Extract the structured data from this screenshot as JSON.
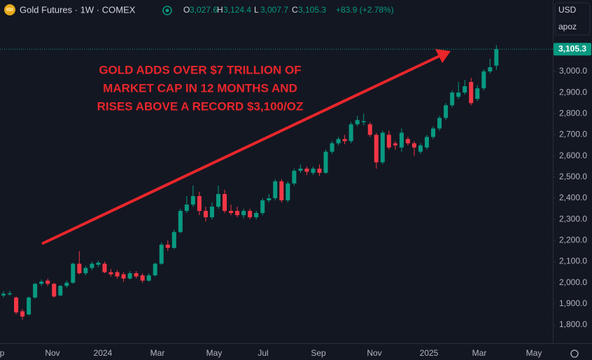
{
  "header": {
    "symbol": "Gold Futures · 1W · COMEX",
    "ohlc": [
      {
        "key": "O",
        "value": "3,027.6"
      },
      {
        "key": "H",
        "value": "3,124.4"
      },
      {
        "key": "L",
        "value": "3,007.7"
      },
      {
        "key": "C",
        "value": "3,105.3"
      }
    ],
    "change": "+83.9 (+2.78%)",
    "currency": "USD",
    "unit_menu": "apoz"
  },
  "chart_data": {
    "type": "candlestick",
    "annotation": [
      "GOLD ADDS OVER $7 TRILLION OF",
      "MARKET CAP IN 12 MONTHS AND",
      "RISES ABOVE A RECORD $3,100/OZ"
    ],
    "up_color": "#089981",
    "down_color": "#f23645",
    "annotation_color": "#e8262b",
    "xtick_labels": [
      "p",
      "Nov",
      "2024",
      "Mar",
      "May",
      "Jul",
      "Sep",
      "Nov",
      "2025",
      "Mar",
      "May"
    ],
    "open": [
      1940,
      1945,
      1930,
      1865,
      1850,
      1930,
      1995,
      2010,
      1995,
      1940,
      1985,
      2000,
      2090,
      2045,
      2070,
      2085,
      2090,
      2050,
      2050,
      2040,
      2020,
      2045,
      2035,
      2010,
      2035,
      2090,
      2180,
      2165,
      2240,
      2340,
      2370,
      2410,
      2340,
      2310,
      2360,
      2420,
      2340,
      2340,
      2320,
      2340,
      2310,
      2330,
      2390,
      2400,
      2480,
      2390,
      2470,
      2530,
      2540,
      2520,
      2540,
      2520,
      2620,
      2660,
      2680,
      2670,
      2750,
      2760,
      2750,
      2700,
      2570,
      2700,
      2660,
      2640,
      2680,
      2660,
      2620,
      2640,
      2690,
      2730,
      2780,
      2840,
      2880,
      2900,
      2950,
      2870,
      2920,
      3000,
      3027.6
    ],
    "high": [
      1960,
      1962,
      1935,
      1875,
      1935,
      2000,
      2015,
      2020,
      2000,
      1990,
      2010,
      2095,
      2150,
      2080,
      2100,
      2105,
      2100,
      2065,
      2060,
      2050,
      2055,
      2055,
      2045,
      2045,
      2095,
      2190,
      2200,
      2250,
      2350,
      2410,
      2460,
      2430,
      2360,
      2380,
      2460,
      2440,
      2370,
      2360,
      2350,
      2350,
      2340,
      2400,
      2420,
      2490,
      2490,
      2480,
      2540,
      2560,
      2550,
      2550,
      2560,
      2630,
      2670,
      2690,
      2700,
      2760,
      2790,
      2800,
      2760,
      2710,
      2720,
      2720,
      2670,
      2730,
      2690,
      2670,
      2660,
      2700,
      2740,
      2790,
      2850,
      2910,
      2950,
      2960,
      2970,
      2935,
      3010,
      3060,
      3124.4
    ],
    "low": [
      1930,
      1938,
      1850,
      1825,
      1845,
      1925,
      1985,
      1985,
      1930,
      1935,
      1975,
      1995,
      2040,
      2035,
      2060,
      2075,
      2045,
      2030,
      2020,
      2005,
      2015,
      2020,
      2000,
      2005,
      2030,
      2085,
      2150,
      2160,
      2235,
      2330,
      2360,
      2320,
      2290,
      2300,
      2350,
      2330,
      2320,
      2310,
      2305,
      2300,
      2300,
      2320,
      2380,
      2390,
      2380,
      2380,
      2460,
      2520,
      2510,
      2510,
      2505,
      2515,
      2610,
      2650,
      2655,
      2660,
      2740,
      2745,
      2690,
      2540,
      2560,
      2630,
      2630,
      2620,
      2650,
      2600,
      2610,
      2630,
      2680,
      2720,
      2770,
      2830,
      2870,
      2890,
      2840,
      2860,
      2910,
      2990,
      3007.7
    ],
    "close": [
      1948,
      1950,
      1860,
      1840,
      1930,
      1995,
      2005,
      1995,
      1935,
      1985,
      2000,
      2090,
      2045,
      2070,
      2090,
      2095,
      2050,
      2040,
      2030,
      2020,
      2045,
      2030,
      2010,
      2035,
      2090,
      2180,
      2165,
      2240,
      2340,
      2370,
      2410,
      2340,
      2310,
      2360,
      2420,
      2340,
      2330,
      2320,
      2340,
      2310,
      2330,
      2390,
      2400,
      2480,
      2390,
      2470,
      2530,
      2540,
      2525,
      2540,
      2520,
      2620,
      2660,
      2680,
      2670,
      2750,
      2770,
      2765,
      2700,
      2570,
      2710,
      2640,
      2650,
      2710,
      2660,
      2640,
      2650,
      2690,
      2730,
      2780,
      2840,
      2900,
      2900,
      2930,
      2850,
      2920,
      3000,
      3020,
      3105.3
    ],
    "last_price": {
      "value": 3105.3,
      "label": "3,105.3"
    },
    "ylim": [
      1714,
      3338
    ],
    "yticks": [
      {
        "value": 1800,
        "label": "1,800.0"
      },
      {
        "value": 1900,
        "label": "1,900.0"
      },
      {
        "value": 2000,
        "label": "2,000.0"
      },
      {
        "value": 2100,
        "label": "2,100.0"
      },
      {
        "value": 2200,
        "label": "2,200.0"
      },
      {
        "value": 2300,
        "label": "2,300.0"
      },
      {
        "value": 2400,
        "label": "2,400.0"
      },
      {
        "value": 2500,
        "label": "2,500.0"
      },
      {
        "value": 2600,
        "label": "2,600.0"
      },
      {
        "value": 2700,
        "label": "2,700.0"
      },
      {
        "value": 2800,
        "label": "2,800.0"
      },
      {
        "value": 2900,
        "label": "2,900.0"
      },
      {
        "value": 3000,
        "label": "3,000.0"
      }
    ],
    "grid": false
  }
}
